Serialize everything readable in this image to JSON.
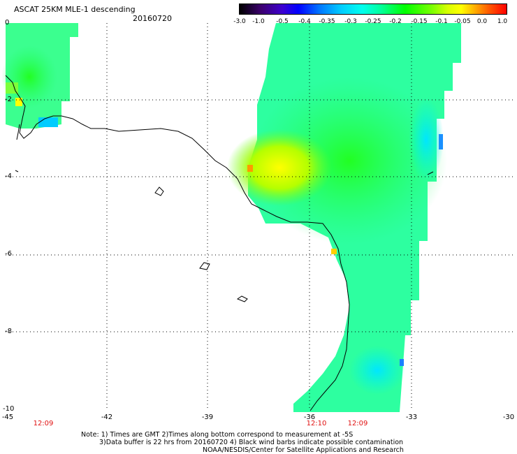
{
  "header": {
    "title": "ASCAT 25KM MLE-1 descending",
    "date": "20160720"
  },
  "colorbar": {
    "labels": [
      "-3.0",
      "-1.0",
      "-0.5",
      "-0.4",
      "-0.35",
      "-0.3",
      "-0.25",
      "-0.2",
      "-0.15",
      "-0.1",
      "-0.05",
      "0.0",
      "1.0"
    ],
    "colors": [
      "#000000",
      "#3c006e",
      "#0000ff",
      "#00ccff",
      "#00ffee",
      "#00ff00",
      "#ffff00",
      "#ff6000",
      "#ff0000"
    ]
  },
  "axes": {
    "y_ticks": [
      "0",
      "-2",
      "-4",
      "-6",
      "-8",
      "-10"
    ],
    "x_ticks": [
      "-45",
      "-42",
      "-39",
      "-36",
      "-33",
      "-30"
    ]
  },
  "times": [
    "12:09",
    "12:10",
    "12:09"
  ],
  "notes": {
    "line1": "Note: 1) Times are GMT 2)Times along bottom correspond to measurement at -5S",
    "line2": "3)Data buffer is 22 hrs from 20160720 4) Black wind barbs indicate possible contamination",
    "line3": "NOAA/NESDIS/Center for Satellite Applications and Research"
  }
}
